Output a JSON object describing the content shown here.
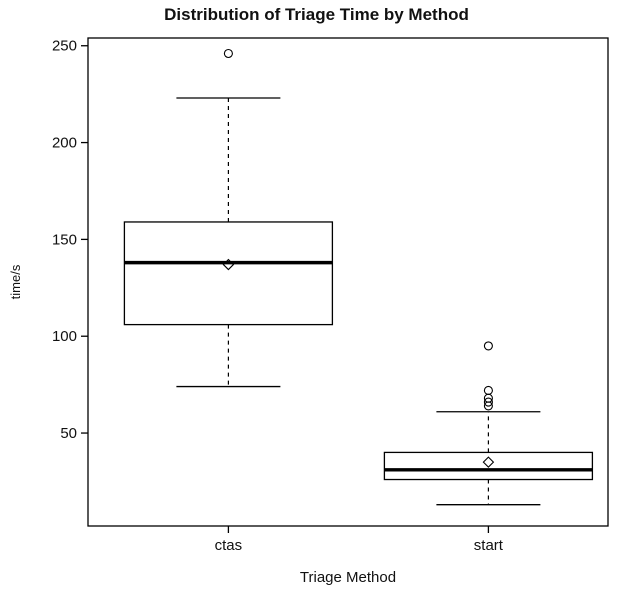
{
  "header": {
    "title": "Distribution of Triage Time by Method"
  },
  "chart_data": {
    "type": "boxplot",
    "title": "Distribution of Triage Time by Method",
    "xlabel": "Triage Method",
    "ylabel": "time/s",
    "ylim": [
      2,
      254
    ],
    "yticks": [
      50,
      100,
      150,
      200,
      250
    ],
    "grid": false,
    "legend": "none",
    "categories": [
      "ctas",
      "start"
    ],
    "series": [
      {
        "name": "ctas",
        "whisker_low": 74,
        "q1": 106,
        "median": 138,
        "q3": 159,
        "whisker_high": 223,
        "mean": 137,
        "outliers": [
          246
        ]
      },
      {
        "name": "start",
        "whisker_low": 13,
        "q1": 26,
        "median": 31,
        "q3": 40,
        "whisker_high": 61,
        "mean": 35,
        "outliers": [
          64,
          66,
          68,
          72,
          95
        ]
      }
    ]
  }
}
